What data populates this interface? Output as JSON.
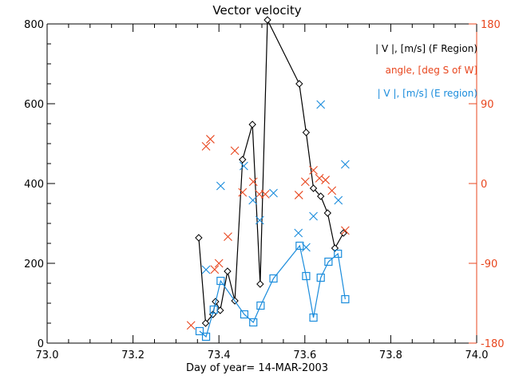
{
  "chart_data": {
    "type": "line",
    "title": "Vector velocity",
    "xlabel": "Day of year= 14-MAR-2003",
    "ylabel_left": "",
    "ylabel_right": "",
    "xlim": [
      73.0,
      74.0
    ],
    "ylim_left": [
      0,
      800
    ],
    "ylim_right": [
      -180,
      180
    ],
    "grid": false,
    "legend_placement": "top-right",
    "x_ticks": [
      "73.0",
      "73.2",
      "73.4",
      "73.6",
      "73.8",
      "74.0"
    ],
    "x_tick_values": [
      73.0,
      73.2,
      73.4,
      73.6,
      73.8,
      74.0
    ],
    "y_left_ticks": [
      "0",
      "200",
      "400",
      "600",
      "800"
    ],
    "y_left_tick_values": [
      0,
      200,
      400,
      600,
      800
    ],
    "y_right_ticks": [
      "-180",
      "-90",
      "0",
      "90",
      "180"
    ],
    "y_right_tick_values": [
      -180,
      -90,
      0,
      90,
      180
    ],
    "series": [
      {
        "name": "| V |, [m/s] (F Region)",
        "axis": "left",
        "marker": "diamond",
        "line": true,
        "color": "#000000",
        "x": [
          73.353,
          73.369,
          73.386,
          73.392,
          73.403,
          73.42,
          73.437,
          73.455,
          73.478,
          73.496,
          73.513,
          73.587,
          73.603,
          73.62,
          73.637,
          73.653,
          73.67,
          73.69
        ],
        "y": [
          264,
          50,
          72,
          104,
          82,
          180,
          106,
          460,
          548,
          148,
          810,
          650,
          528,
          388,
          368,
          326,
          238,
          276
        ]
      },
      {
        "name": "angle, [deg S of W]",
        "axis": "right",
        "marker": "x",
        "line": false,
        "color": "#e8461e",
        "x": [
          73.335,
          73.37,
          73.38,
          73.39,
          73.4,
          73.421,
          73.437,
          73.455,
          73.48,
          73.494,
          73.508,
          73.586,
          73.601,
          73.62,
          73.634,
          73.648,
          73.663,
          73.694
        ],
        "y": [
          -160,
          42,
          50,
          -97,
          -90,
          -60,
          37,
          -10,
          2,
          -12,
          -12,
          -13,
          2,
          15,
          6,
          4,
          -8,
          -53
        ]
      },
      {
        "name": "| V |, [m/s] (E region)",
        "axis": "left",
        "marker": "square",
        "line": true,
        "color": "#1a8cdc",
        "x": [
          73.355,
          73.37,
          73.388,
          73.404,
          73.459,
          73.48,
          73.497,
          73.527,
          73.588,
          73.603,
          73.62,
          73.637,
          73.655,
          73.677,
          73.694
        ],
        "y": [
          30,
          16,
          84,
          156,
          72,
          52,
          94,
          162,
          244,
          168,
          64,
          164,
          204,
          224,
          110
        ]
      },
      {
        "name": "| V |, [m/s] (E region) crosses",
        "axis": "left",
        "marker": "x",
        "line": false,
        "color": "#1a8cdc",
        "x": [
          73.37,
          73.404,
          73.458,
          73.479,
          73.495,
          73.527,
          73.585,
          73.603,
          73.62,
          73.637,
          73.678,
          73.694
        ],
        "y": [
          184,
          394,
          444,
          358,
          308,
          376,
          276,
          240,
          318,
          598,
          358,
          448
        ]
      }
    ],
    "legend": [
      {
        "label": "| V |, [m/s] (F Region)",
        "color": "#000000"
      },
      {
        "label": "angle, [deg S of W]",
        "color": "#e8461e"
      },
      {
        "label": "| V |, [m/s] (E region)",
        "color": "#1a8cdc"
      }
    ]
  }
}
